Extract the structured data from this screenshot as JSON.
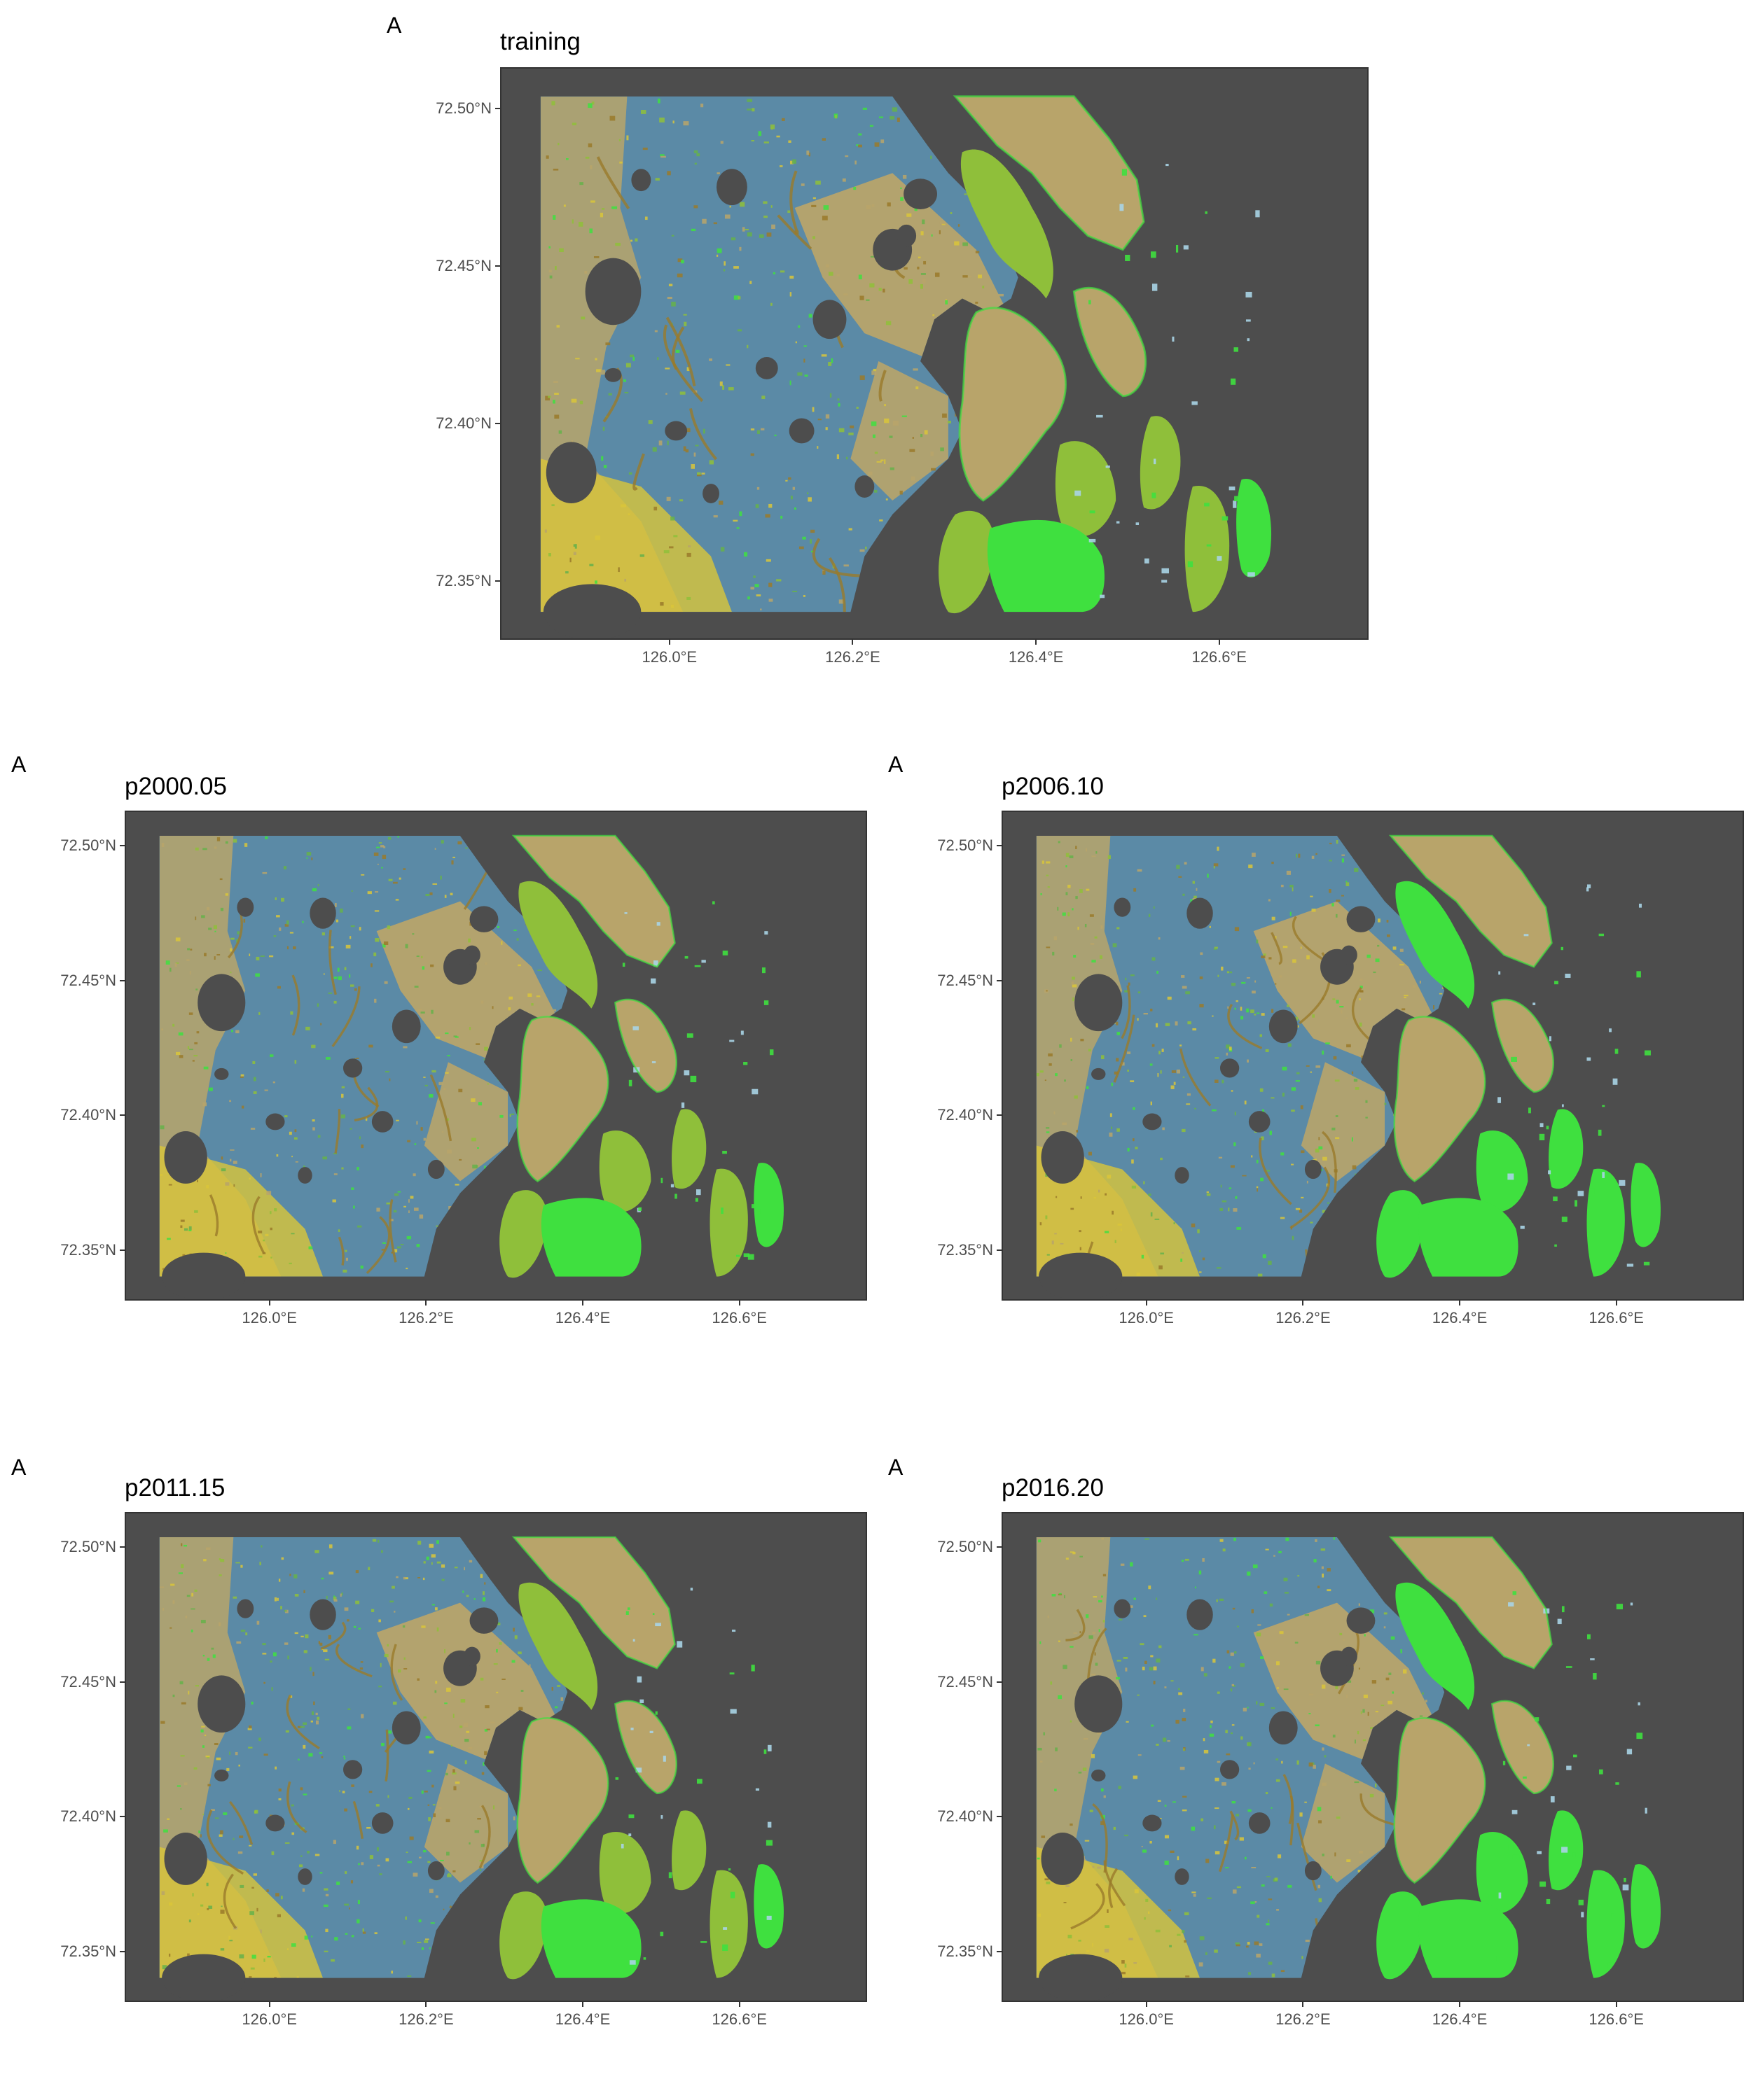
{
  "panel_tag": "A",
  "axes": {
    "y_ticks": [
      "72.50°N",
      "72.45°N",
      "72.40°N",
      "72.35°N"
    ],
    "x_ticks": [
      "126.0°E",
      "126.2°E",
      "126.4°E",
      "126.6°E"
    ],
    "lon_range": [
      125.84,
      126.77
    ],
    "lat_range": [
      72.325,
      72.513
    ]
  },
  "colors": {
    "background": "#4d4d4d",
    "water": "#4d4d4d",
    "blue_tundra": "#5b8aa6",
    "tan_tundra": "#b8a46a",
    "brown": "#9a7a2a",
    "yellow": "#d9c53a",
    "olive_green": "#8fbf3a",
    "bright_green": "#3fe03f",
    "light_blue": "#a8d4e6",
    "mid_green": "#66b24a"
  },
  "panels": [
    {
      "tag": "A",
      "title": "training"
    },
    {
      "tag": "A",
      "title": "p2000.05"
    },
    {
      "tag": "A",
      "title": "p2006.10"
    },
    {
      "tag": "A",
      "title": "p2011.15"
    },
    {
      "tag": "A",
      "title": "p2016.20"
    }
  ]
}
